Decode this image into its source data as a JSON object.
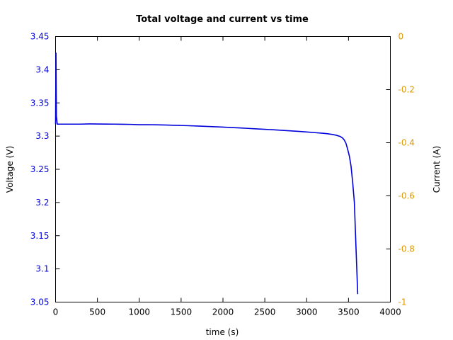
{
  "chart_data": {
    "type": "line",
    "title": "Total voltage and current vs time",
    "xlabel": "time (s)",
    "ylabel": "Voltage (V)",
    "y2label": "Current (A)",
    "xlim": [
      0,
      4000
    ],
    "ylim": [
      3.05,
      3.45
    ],
    "y2lim": [
      -1,
      0
    ],
    "grid": false,
    "x_ticks": [
      "0",
      "500",
      "1000",
      "1500",
      "2000",
      "2500",
      "3000",
      "3500",
      "4000"
    ],
    "y_ticks": [
      "3.05",
      "3.1",
      "3.15",
      "3.2",
      "3.25",
      "3.3",
      "3.35",
      "3.4",
      "3.45"
    ],
    "y2_ticks": [
      "0",
      "-0.2",
      "-0.4",
      "-0.6",
      "-0.8",
      "-1"
    ],
    "colors": {
      "voltage": "#0000dd",
      "current_axis": "#dd9900",
      "frame": "#000000"
    },
    "series": [
      {
        "axis": "left",
        "color": "#0000dd",
        "x": [
          0,
          5,
          10,
          20,
          50,
          100,
          200,
          300,
          400,
          500,
          600,
          700,
          800,
          900,
          1000,
          1100,
          1200,
          1300,
          1400,
          1500,
          1600,
          1700,
          1800,
          1900,
          2000,
          2100,
          2200,
          2300,
          2400,
          2500,
          2600,
          2700,
          2800,
          2900,
          3000,
          3100,
          3200,
          3250,
          3300,
          3350,
          3400,
          3430,
          3450,
          3470,
          3490,
          3510,
          3530,
          3550,
          3570,
          3590,
          3610
        ],
        "y": [
          3.318,
          3.425,
          3.33,
          3.318,
          3.318,
          3.318,
          3.318,
          3.318,
          3.3183,
          3.3182,
          3.3181,
          3.318,
          3.3178,
          3.3176,
          3.3171,
          3.3172,
          3.317,
          3.3167,
          3.3163,
          3.316,
          3.3156,
          3.3151,
          3.3146,
          3.3141,
          3.3135,
          3.3129,
          3.3123,
          3.3116,
          3.3109,
          3.3102,
          3.3095,
          3.3087,
          3.3079,
          3.3071,
          3.3062,
          3.3052,
          3.3042,
          3.3035,
          3.3026,
          3.3014,
          3.2995,
          3.297,
          3.294,
          3.289,
          3.28,
          3.27,
          3.255,
          3.23,
          3.2,
          3.13,
          3.062
        ]
      }
    ]
  }
}
